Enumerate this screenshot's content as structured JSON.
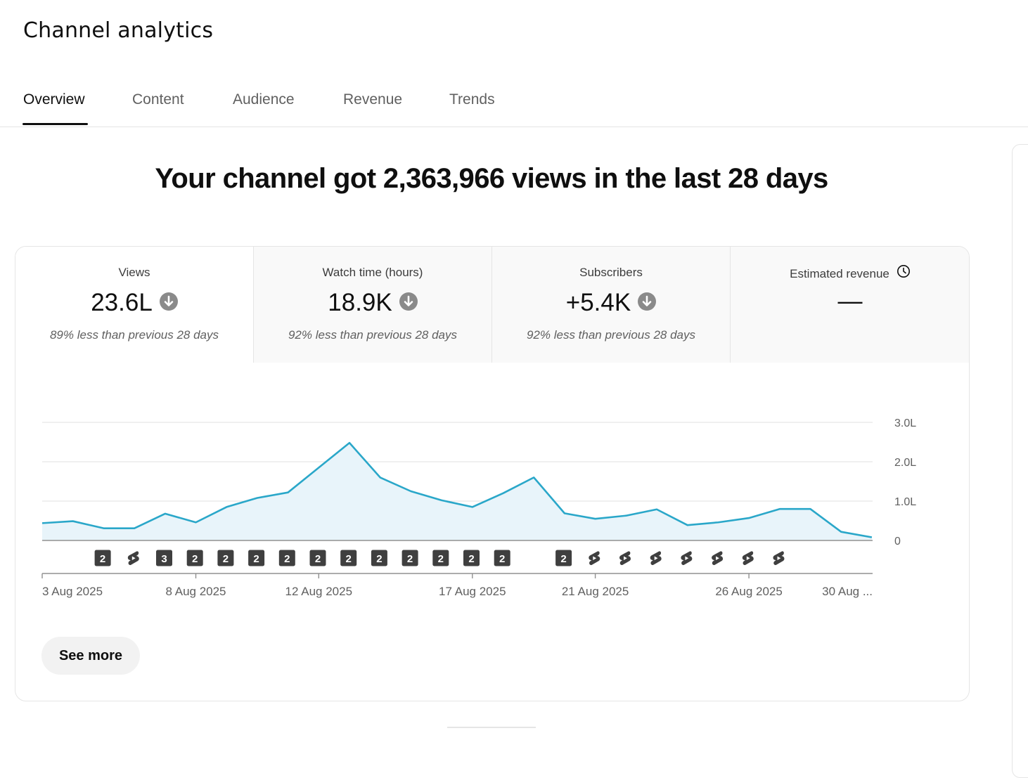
{
  "page": {
    "title": "Channel analytics"
  },
  "tabs": [
    {
      "label": "Overview",
      "active": true
    },
    {
      "label": "Content",
      "active": false
    },
    {
      "label": "Audience",
      "active": false
    },
    {
      "label": "Revenue",
      "active": false
    },
    {
      "label": "Trends",
      "active": false
    }
  ],
  "headline": "Your channel got 2,363,966 views in the last 28 days",
  "metrics": [
    {
      "label": "Views",
      "value": "23.6L",
      "trend_icon": "arrow-down-circle-icon",
      "note": "89% less than previous 28 days"
    },
    {
      "label": "Watch time (hours)",
      "value": "18.9K",
      "trend_icon": "arrow-down-circle-icon",
      "note": "92% less than previous 28 days"
    },
    {
      "label": "Subscribers",
      "value": "+5.4K",
      "trend_icon": "arrow-down-circle-icon",
      "note": "92% less than previous 28 days"
    },
    {
      "label": "Estimated revenue",
      "value": "—",
      "label_icon": "clock-icon",
      "note": ""
    }
  ],
  "chart_data": {
    "type": "area",
    "title": "",
    "xlabel": "",
    "ylabel": "",
    "y_unit": "lakh views",
    "ylim": [
      0,
      3
    ],
    "y_ticks": [
      "3.0L",
      "2.0L",
      "1.0L",
      "0"
    ],
    "y_tick_values": [
      3,
      2,
      1,
      0
    ],
    "grid": true,
    "color": "#2aa7c9",
    "fill_color": "#e8f4fa",
    "x_tick_labels": [
      "3 Aug 2025",
      "8 Aug 2025",
      "12 Aug 2025",
      "17 Aug 2025",
      "21 Aug 2025",
      "26 Aug 2025",
      "30 Aug ..."
    ],
    "x_tick_day_index": [
      0,
      5,
      9,
      14,
      18,
      23,
      27
    ],
    "series": [
      {
        "name": "",
        "values": [
          0.44,
          0.49,
          0.31,
          0.31,
          0.68,
          0.46,
          0.85,
          1.08,
          1.22,
          1.85,
          2.48,
          1.6,
          1.25,
          1.02,
          0.85,
          1.2,
          1.6,
          0.69,
          0.55,
          0.63,
          0.79,
          0.39,
          0.46,
          0.57,
          0.8,
          0.8,
          0.22,
          0.08
        ]
      }
    ],
    "upload_markers": [
      {
        "day_index": 1,
        "type": "count",
        "label": "2"
      },
      {
        "day_index": 2,
        "type": "short"
      },
      {
        "day_index": 3,
        "type": "count",
        "label": "3"
      },
      {
        "day_index": 4,
        "type": "count",
        "label": "2"
      },
      {
        "day_index": 5,
        "type": "count",
        "label": "2"
      },
      {
        "day_index": 6,
        "type": "count",
        "label": "2"
      },
      {
        "day_index": 7,
        "type": "count",
        "label": "2"
      },
      {
        "day_index": 8,
        "type": "count",
        "label": "2"
      },
      {
        "day_index": 9,
        "type": "count",
        "label": "2"
      },
      {
        "day_index": 10,
        "type": "count",
        "label": "2"
      },
      {
        "day_index": 11,
        "type": "count",
        "label": "2"
      },
      {
        "day_index": 12,
        "type": "count",
        "label": "2"
      },
      {
        "day_index": 13,
        "type": "count",
        "label": "2"
      },
      {
        "day_index": 14,
        "type": "count",
        "label": "2"
      },
      {
        "day_index": 16,
        "type": "count",
        "label": "2"
      },
      {
        "day_index": 17,
        "type": "short"
      },
      {
        "day_index": 18,
        "type": "short"
      },
      {
        "day_index": 19,
        "type": "short"
      },
      {
        "day_index": 20,
        "type": "short"
      },
      {
        "day_index": 21,
        "type": "short"
      },
      {
        "day_index": 22,
        "type": "short"
      },
      {
        "day_index": 23,
        "type": "short"
      }
    ]
  },
  "see_more_label": "See more"
}
